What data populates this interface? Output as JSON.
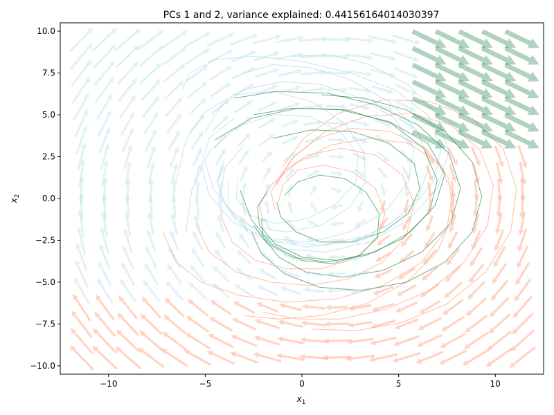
{
  "chart_data": {
    "type": "quiver",
    "title": "PCs 1 and 2, variance explained: 0.44156164014030397",
    "xlabel": {
      "base": "x",
      "sub": "1"
    },
    "ylabel": {
      "base": "x",
      "sub": "2"
    },
    "xlim": [
      -12.5,
      12.5
    ],
    "ylim": [
      -10.5,
      10.5
    ],
    "xticks": [
      -10,
      -5,
      0,
      5,
      10
    ],
    "yticks": [
      -10.0,
      -7.5,
      -5.0,
      -2.5,
      0.0,
      2.5,
      5.0,
      7.5,
      10.0
    ],
    "xtick_labels": [
      "−10",
      "−5",
      "0",
      "5",
      "10"
    ],
    "ytick_labels": [
      "−10.0",
      "−7.5",
      "−5.0",
      "−2.5",
      "0.0",
      "2.5",
      "5.0",
      "7.5",
      "10.0"
    ],
    "grid": false,
    "legend": null,
    "vector_field": {
      "grid_x_range": [
        -11.4,
        11.4
      ],
      "grid_y_range": [
        -9.5,
        9.5
      ],
      "grid_n": 20,
      "regions": [
        {
          "color": "#add8e6",
          "opacity": 0.35,
          "description": "left / upper-left region, rotating clockwise"
        },
        {
          "color": "#ffa07a",
          "opacity": 0.45,
          "description": "lower / right region"
        },
        {
          "color": "#2e8b57",
          "opacity": 0.38,
          "description": "upper-right region, strong flow to lower-right"
        }
      ]
    },
    "series": [
      {
        "color": "#add8e6",
        "trajectories": [
          {
            "x": [
              -6.2,
              -5.8,
              -4.5,
              -2.5,
              0.0,
              2.5,
              4.8,
              6.5,
              7.2,
              6.8,
              5.5,
              3.5,
              1.0,
              -1.5,
              -3.5,
              -4.8,
              -5.2,
              -4.8,
              -3.5
            ],
            "y": [
              6.5,
              7.5,
              8.3,
              8.5,
              8.2,
              7.5,
              6.5,
              5.0,
              3.0,
              1.0,
              -0.8,
              -2.2,
              -2.8,
              -2.5,
              -1.5,
              0.2,
              2.0,
              3.6,
              4.8
            ]
          },
          {
            "x": [
              -5.0,
              -4.2,
              -3.0,
              -1.0,
              1.0,
              3.0,
              4.8,
              5.8,
              5.5,
              4.3,
              2.5,
              0.4,
              -1.6,
              -3.4,
              -4.6,
              -5.0
            ],
            "y": [
              4.0,
              5.5,
              6.5,
              7.0,
              6.8,
              6.0,
              4.8,
              3.0,
              1.0,
              -0.8,
              -2.0,
              -2.6,
              -2.4,
              -1.2,
              0.6,
              2.2
            ]
          },
          {
            "x": [
              -6.5,
              -6.0,
              -5.0,
              -3.5,
              -1.5,
              0.5,
              2.2,
              3.2,
              3.3,
              2.5,
              1.0,
              -0.8,
              -2.6,
              -3.9,
              -4.4,
              -4.0
            ],
            "y": [
              1.0,
              3.5,
              5.2,
              6.2,
              6.4,
              5.8,
              4.5,
              2.8,
              1.0,
              -0.5,
              -1.6,
              -2.0,
              -1.7,
              -0.5,
              1.0,
              2.4
            ]
          },
          {
            "x": [
              -3.0,
              -1.5,
              0.5,
              2.5,
              4.5,
              6.0,
              6.6,
              6.0,
              4.5,
              2.5,
              0.3,
              -1.8,
              -3.4,
              -4.2,
              -4.0,
              -3.0
            ],
            "y": [
              7.5,
              8.0,
              7.8,
              7.1,
              5.8,
              4.0,
              2.0,
              0.0,
              -1.6,
              -2.6,
              -2.9,
              -2.5,
              -1.4,
              0.2,
              1.8,
              3.2
            ]
          },
          {
            "x": [
              -6.0,
              -5.7,
              -4.8,
              -3.3,
              -1.5,
              0.4,
              2.0,
              2.9,
              2.8,
              1.8,
              0.3,
              -1.3,
              -2.7,
              -3.4,
              -3.3
            ],
            "y": [
              -2.0,
              0.5,
              2.8,
              4.3,
              5.0,
              4.9,
              4.0,
              2.6,
              1.0,
              -0.3,
              -1.2,
              -1.5,
              -1.0,
              0.0,
              1.2
            ]
          },
          {
            "x": [
              -0.5,
              1.5,
              3.5,
              5.5,
              7.0,
              7.6,
              7.0,
              5.5,
              3.5,
              1.2,
              -1.0,
              -2.8,
              -3.8,
              -3.8
            ],
            "y": [
              8.5,
              8.6,
              8.0,
              6.8,
              5.0,
              2.8,
              0.6,
              -1.3,
              -2.6,
              -3.2,
              -3.0,
              -2.0,
              -0.5,
              1.0
            ]
          }
        ]
      },
      {
        "color": "#ffa07a",
        "trajectories": [
          {
            "x": [
              -7.2,
              -6.5,
              -5.2,
              -3.2,
              -0.8,
              1.8,
              4.2,
              6.2,
              7.5,
              7.8,
              7.0,
              5.5,
              3.5,
              1.5,
              -0.3,
              -1.6,
              -2.2,
              -2.0
            ],
            "y": [
              -2.0,
              -3.8,
              -5.0,
              -5.8,
              -6.2,
              -6.0,
              -5.2,
              -3.8,
              -1.8,
              0.4,
              2.2,
              3.3,
              3.6,
              3.2,
              2.1,
              0.8,
              -0.4,
              -1.4
            ]
          },
          {
            "x": [
              -5.5,
              -4.8,
              -3.4,
              -1.6,
              0.4,
              2.4,
              4.2,
              5.4,
              5.8,
              5.2,
              3.8,
              2.0,
              0.3,
              -1.0,
              -1.6,
              -1.4
            ],
            "y": [
              -1.5,
              -3.2,
              -4.4,
              -5.0,
              -5.2,
              -4.8,
              -3.8,
              -2.2,
              -0.3,
              1.4,
              2.6,
              3.0,
              2.6,
              1.6,
              0.4,
              -0.6
            ]
          },
          {
            "x": [
              -2.0,
              -0.2,
              2.0,
              4.4,
              6.6,
              8.4,
              9.6,
              9.9,
              9.2,
              7.7,
              5.6,
              3.3,
              1.2,
              -0.4,
              -1.4
            ],
            "y": [
              -6.8,
              -7.2,
              -7.2,
              -6.6,
              -5.5,
              -3.8,
              -1.6,
              0.8,
              2.9,
              4.4,
              5.1,
              4.9,
              4.0,
              2.5,
              0.8
            ]
          },
          {
            "x": [
              0.5,
              2.8,
              5.2,
              7.5,
              9.5,
              10.8,
              11.1,
              10.4,
              8.8,
              6.6,
              4.2,
              1.9,
              0.1,
              -1.0
            ],
            "y": [
              -7.8,
              -7.9,
              -7.4,
              -6.3,
              -4.4,
              -2.0,
              0.6,
              3.0,
              4.8,
              5.8,
              5.9,
              5.1,
              3.6,
              1.9
            ]
          },
          {
            "x": [
              -4.2,
              -3.6,
              -2.4,
              -0.8,
              1.0,
              2.7,
              3.9,
              4.3,
              3.8,
              2.6,
              1.1,
              -0.2,
              -1.0,
              -1.2
            ],
            "y": [
              -1.0,
              -2.6,
              -3.7,
              -4.2,
              -4.2,
              -3.6,
              -2.4,
              -0.9,
              0.6,
              1.6,
              2.0,
              1.7,
              0.8,
              -0.2
            ]
          },
          {
            "x": [
              -3.0,
              -1.2,
              1.0,
              3.3,
              5.4,
              7.0,
              7.8,
              7.6,
              6.4,
              4.6,
              2.6,
              0.8,
              -0.6,
              -1.3
            ],
            "y": [
              -7.0,
              -7.2,
              -7.0,
              -6.3,
              -5.0,
              -3.2,
              -1.0,
              1.2,
              3.0,
              4.0,
              4.2,
              3.6,
              2.3,
              0.8
            ]
          }
        ]
      },
      {
        "color": "#2e8b57",
        "trajectories": [
          {
            "x": [
              -2.5,
              -0.5,
              2.0,
              4.5,
              6.5,
              7.4,
              6.9,
              5.6,
              3.8,
              1.8,
              0.0,
              -1.4,
              -2.2,
              -2.3,
              -1.8
            ],
            "y": [
              5.0,
              5.4,
              5.3,
              4.6,
              3.3,
              1.5,
              -0.4,
              -2.0,
              -3.2,
              -3.7,
              -3.5,
              -2.7,
              -1.6,
              -0.5,
              0.4
            ]
          },
          {
            "x": [
              -3.5,
              -1.3,
              1.3,
              3.8,
              6.0,
              7.6,
              8.2,
              7.7,
              6.2,
              4.2,
              2.1,
              0.2,
              -1.2,
              -2.0,
              -2.1
            ],
            "y": [
              6.0,
              6.4,
              6.3,
              5.6,
              4.4,
              2.7,
              0.6,
              -1.5,
              -3.2,
              -4.3,
              -4.7,
              -4.4,
              -3.5,
              -2.3,
              -1.2
            ]
          },
          {
            "x": [
              -1.5,
              0.5,
              2.6,
              4.5,
              5.8,
              6.1,
              5.5,
              4.2,
              2.6,
              1.0,
              -0.3,
              -1.1,
              -1.3
            ],
            "y": [
              3.6,
              4.1,
              4.0,
              3.3,
              2.1,
              0.6,
              -0.9,
              -2.0,
              -2.6,
              -2.6,
              -2.0,
              -1.1,
              -0.2
            ]
          },
          {
            "x": [
              1.0,
              3.2,
              5.4,
              7.4,
              8.8,
              9.3,
              8.8,
              7.4,
              5.4,
              3.1,
              0.9,
              -0.9,
              -2.1,
              -2.6
            ],
            "y": [
              6.2,
              6.0,
              5.3,
              4.0,
              2.2,
              0.1,
              -2.0,
              -3.8,
              -5.0,
              -5.5,
              -5.3,
              -4.5,
              -3.3,
              -2.0
            ]
          },
          {
            "x": [
              -4.5,
              -2.6,
              -0.2,
              2.3,
              4.6,
              6.3,
              7.0,
              6.6,
              5.2,
              3.3,
              1.3,
              -0.5,
              -1.8,
              -2.5
            ],
            "y": [
              3.5,
              4.8,
              5.4,
              5.3,
              4.5,
              3.0,
              1.1,
              -0.8,
              -2.4,
              -3.4,
              -3.8,
              -3.5,
              -2.7,
              -1.6
            ]
          },
          {
            "x": [
              -3.2,
              -2.6,
              -1.5,
              0.0,
              1.6,
              3.0,
              3.9,
              4.0,
              3.3,
              2.2,
              0.9,
              -0.2,
              -0.9
            ],
            "y": [
              0.5,
              -1.3,
              -2.8,
              -3.7,
              -3.9,
              -3.4,
              -2.3,
              -0.9,
              0.4,
              1.2,
              1.4,
              1.0,
              0.2
            ]
          }
        ]
      }
    ]
  }
}
